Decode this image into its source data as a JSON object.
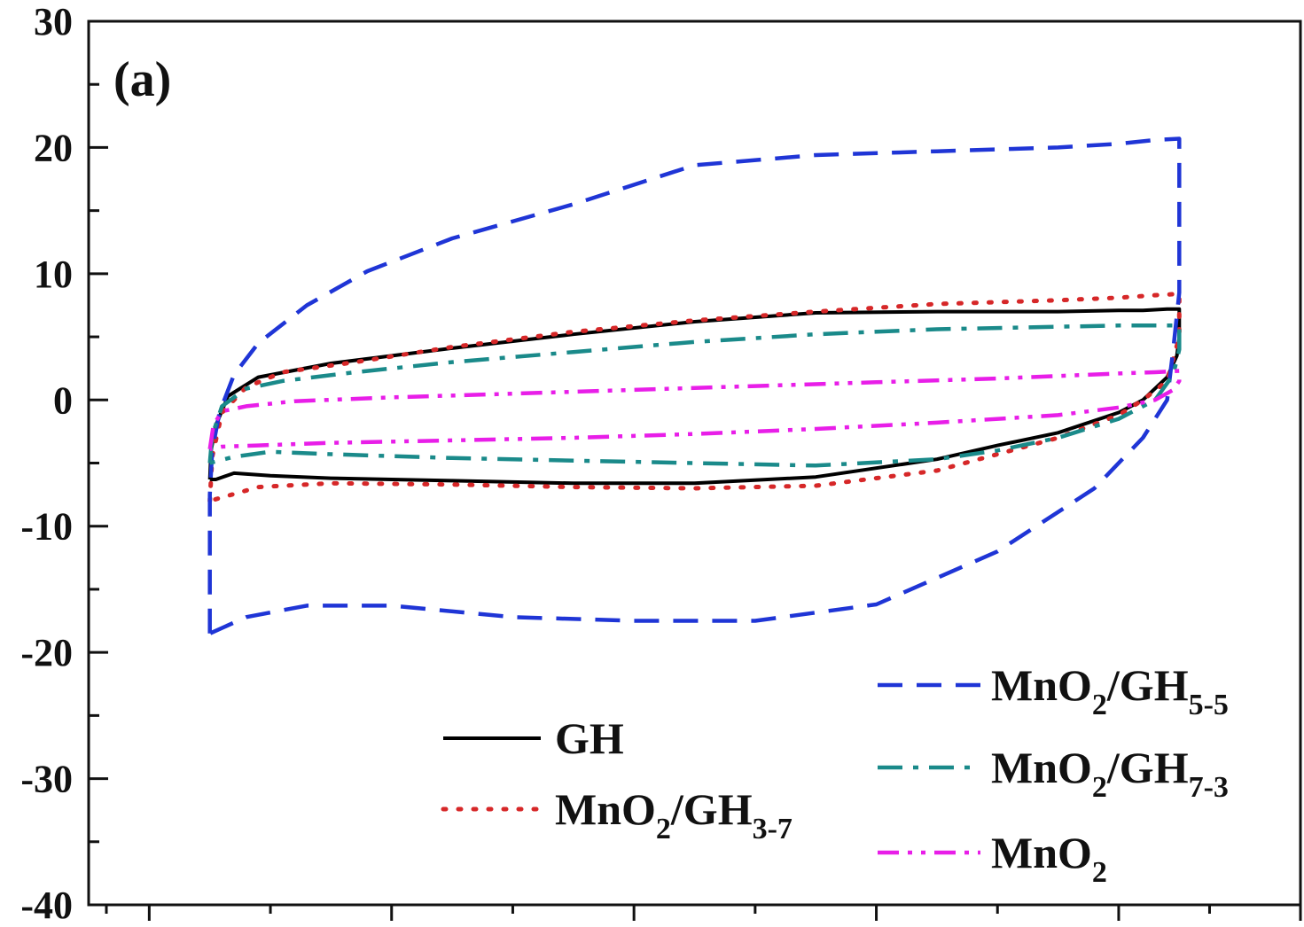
{
  "chart_data": {
    "type": "line",
    "panel_label": "(a)",
    "title": "",
    "xlabel": "",
    "ylabel": "",
    "ylim": [
      -40,
      30
    ],
    "xlim": [
      -1.0,
      0.0
    ],
    "yticks": [
      {
        "value": 30,
        "label": "30"
      },
      {
        "value": 20,
        "label": "20"
      },
      {
        "value": 10,
        "label": "10"
      },
      {
        "value": 0,
        "label": "0"
      },
      {
        "value": -10,
        "label": "-10"
      },
      {
        "value": -20,
        "label": "-20"
      },
      {
        "value": -30,
        "label": "-30"
      },
      {
        "value": -40,
        "label": "-40"
      }
    ],
    "xticks_major": [
      -0.95,
      -0.75,
      -0.55,
      -0.35,
      -0.15,
      0.0
    ],
    "grid": false,
    "legend_placement": "bottom-right",
    "series": [
      {
        "name": "GH",
        "name_main": "GH",
        "name_sub": "",
        "name_tail": "",
        "color": "#000000",
        "dash": "none",
        "width": 4,
        "x": [
          -0.9,
          -0.899,
          -0.895,
          -0.885,
          -0.86,
          -0.8,
          -0.7,
          -0.6,
          -0.5,
          -0.4,
          -0.3,
          -0.25,
          -0.2,
          -0.15,
          -0.13,
          -0.11,
          -0.1,
          -0.1,
          -0.102,
          -0.11,
          -0.13,
          -0.15,
          -0.2,
          -0.25,
          -0.3,
          -0.4,
          -0.5,
          -0.6,
          -0.7,
          -0.8,
          -0.85,
          -0.88,
          -0.895,
          -0.9
        ],
        "y": [
          -6.3,
          -4.0,
          -2.0,
          0.3,
          1.8,
          2.9,
          4.1,
          5.2,
          6.2,
          6.9,
          7.0,
          7.0,
          7.0,
          7.1,
          7.1,
          7.2,
          7.2,
          5.0,
          3.5,
          1.8,
          0.0,
          -1.0,
          -2.6,
          -3.6,
          -4.7,
          -6.1,
          -6.6,
          -6.6,
          -6.4,
          -6.2,
          -6.0,
          -5.8,
          -6.3,
          -6.3
        ]
      },
      {
        "name": "MnO2/GH3-7",
        "name_main": "MnO",
        "name_sub": "2",
        "name_tail": "/GH",
        "name_sub2": "3-7",
        "color": "#d62728",
        "dash": "dotted",
        "width": 5,
        "x": [
          -0.9,
          -0.898,
          -0.89,
          -0.87,
          -0.84,
          -0.78,
          -0.7,
          -0.6,
          -0.5,
          -0.4,
          -0.3,
          -0.2,
          -0.15,
          -0.12,
          -0.1,
          -0.1,
          -0.11,
          -0.13,
          -0.15,
          -0.2,
          -0.25,
          -0.3,
          -0.4,
          -0.5,
          -0.6,
          -0.7,
          -0.8,
          -0.86,
          -0.9
        ],
        "y": [
          -8.0,
          -4.5,
          -1.0,
          1.0,
          2.2,
          3.0,
          4.2,
          5.4,
          6.3,
          7.0,
          7.6,
          7.9,
          8.1,
          8.3,
          8.4,
          5.0,
          1.5,
          0.0,
          -1.2,
          -3.0,
          -4.3,
          -5.6,
          -6.8,
          -7.0,
          -6.9,
          -6.7,
          -6.6,
          -6.9,
          -8.0
        ]
      },
      {
        "name": "MnO2/GH5-5",
        "name_main": "MnO",
        "name_sub": "2",
        "name_tail": "/GH",
        "name_sub2": "5-5",
        "color": "#1f35d6",
        "dash": "dashed",
        "width": 4.5,
        "x": [
          -0.9,
          -0.9,
          -0.898,
          -0.892,
          -0.88,
          -0.86,
          -0.82,
          -0.77,
          -0.7,
          -0.6,
          -0.5,
          -0.4,
          -0.3,
          -0.2,
          -0.15,
          -0.12,
          -0.1,
          -0.1,
          -0.105,
          -0.11,
          -0.13,
          -0.17,
          -0.25,
          -0.35,
          -0.45,
          -0.55,
          -0.65,
          -0.75,
          -0.82,
          -0.87,
          -0.9
        ],
        "y": [
          -18.5,
          -7.5,
          -4.0,
          -1.0,
          2.0,
          4.5,
          7.5,
          10.2,
          12.8,
          15.5,
          18.6,
          19.4,
          19.7,
          20.0,
          20.3,
          20.6,
          20.7,
          8.5,
          4.0,
          0.0,
          -3.0,
          -7.0,
          -12.0,
          -16.2,
          -17.5,
          -17.5,
          -17.2,
          -16.3,
          -16.3,
          -17.2,
          -18.5
        ]
      },
      {
        "name": "MnO2/GH7-3",
        "name_main": "MnO",
        "name_sub": "2",
        "name_tail": "/GH",
        "name_sub2": "7-3",
        "color": "#1a8a8a",
        "dash": "dashdot",
        "width": 4.5,
        "x": [
          -0.9,
          -0.898,
          -0.89,
          -0.87,
          -0.84,
          -0.78,
          -0.7,
          -0.6,
          -0.5,
          -0.4,
          -0.3,
          -0.2,
          -0.15,
          -0.12,
          -0.1,
          -0.1,
          -0.105,
          -0.12,
          -0.15,
          -0.2,
          -0.25,
          -0.3,
          -0.4,
          -0.5,
          -0.6,
          -0.7,
          -0.8,
          -0.85,
          -0.88,
          -0.9
        ],
        "y": [
          -5.0,
          -2.8,
          -0.5,
          0.9,
          1.5,
          2.2,
          3.0,
          3.8,
          4.6,
          5.2,
          5.6,
          5.8,
          5.9,
          5.9,
          5.9,
          4.0,
          2.0,
          0.0,
          -1.5,
          -3.0,
          -4.0,
          -4.7,
          -5.2,
          -5.0,
          -4.8,
          -4.6,
          -4.3,
          -4.1,
          -4.5,
          -5.0
        ]
      },
      {
        "name": "MnO2",
        "name_main": "MnO",
        "name_sub": "2",
        "name_tail": "",
        "name_sub2": "",
        "color": "#e81ee8",
        "dash": "dashdotdot",
        "width": 4.5,
        "x": [
          -0.9,
          -0.897,
          -0.89,
          -0.87,
          -0.83,
          -0.75,
          -0.65,
          -0.55,
          -0.45,
          -0.35,
          -0.25,
          -0.15,
          -0.12,
          -0.1,
          -0.1,
          -0.105,
          -0.12,
          -0.15,
          -0.2,
          -0.3,
          -0.4,
          -0.5,
          -0.6,
          -0.7,
          -0.8,
          -0.86,
          -0.89,
          -0.9
        ],
        "y": [
          -3.9,
          -2.0,
          -0.9,
          -0.5,
          -0.1,
          0.2,
          0.5,
          0.8,
          1.1,
          1.4,
          1.7,
          2.1,
          2.2,
          2.3,
          1.5,
          0.8,
          0.0,
          -0.6,
          -1.2,
          -1.8,
          -2.3,
          -2.7,
          -3.0,
          -3.2,
          -3.4,
          -3.6,
          -3.7,
          -3.9
        ]
      }
    ]
  }
}
